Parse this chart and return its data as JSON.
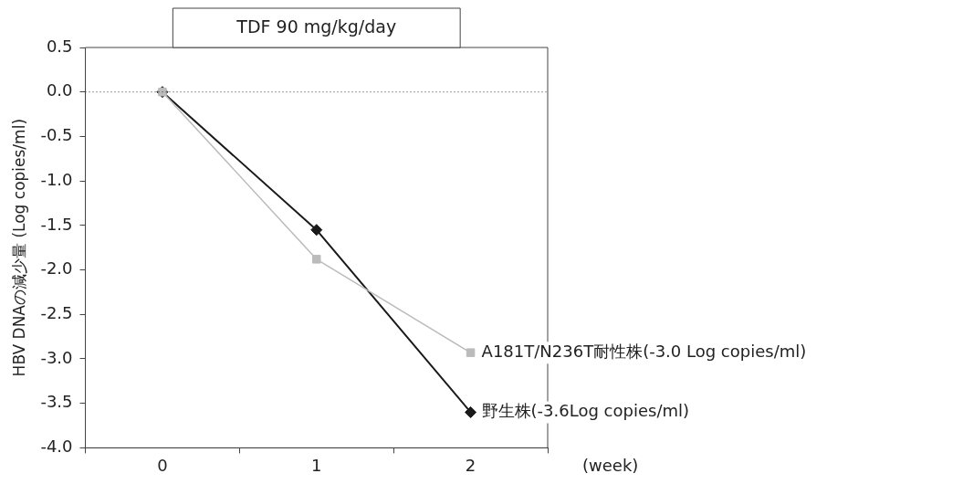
{
  "chart_data": {
    "type": "line",
    "title": "TDF 90 mg/kg/day",
    "xlabel": "(week)",
    "ylabel": "HBV DNAの減少量 (Log copies/ml)",
    "categories": [
      "0",
      "1",
      "2"
    ],
    "series": [
      {
        "name": "A181T/N236T耐性株(-3.0 Log copies/ml)",
        "color": "#bbbbbb",
        "marker": "square",
        "values": [
          0,
          -1.88,
          -2.93
        ]
      },
      {
        "name": "野生株(-3.6Log copies/ml)",
        "color": "#1a1a1a",
        "marker": "diamond",
        "values": [
          0,
          -1.55,
          -3.6
        ]
      }
    ],
    "ylim": [
      -4,
      0.5
    ],
    "yticks": [
      {
        "value": 0.5,
        "label": "0.5"
      },
      {
        "value": 0,
        "label": "0.0"
      },
      {
        "value": -0.5,
        "label": "-0.5"
      },
      {
        "value": -1,
        "label": "-1.0"
      },
      {
        "value": -1.5,
        "label": "-1.5"
      },
      {
        "value": -2,
        "label": "-2.0"
      },
      {
        "value": -2.5,
        "label": "-2.5"
      },
      {
        "value": -3,
        "label": "-3.0"
      },
      {
        "value": -3.5,
        "label": "-3.5"
      },
      {
        "value": -4,
        "label": "-4.0"
      }
    ],
    "ref_lines": [
      {
        "axis": "y",
        "value": 0,
        "line_style": "dotted",
        "color": "#333333"
      }
    ],
    "grid": false,
    "legend": false,
    "line_style": "solid"
  }
}
